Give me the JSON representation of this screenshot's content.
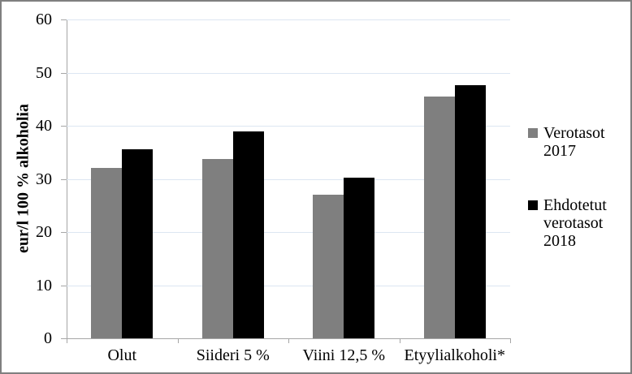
{
  "chart_data": {
    "type": "bar",
    "title": "",
    "xlabel": "",
    "ylabel": "eur/l 100 % alkoholia",
    "ylim": [
      0,
      60
    ],
    "ytick_step": 10,
    "grid": true,
    "legend_position": "right",
    "categories": [
      "Olut",
      "Siideri 5 %",
      "Viini 12,5 %",
      "Etyylialkoholi*"
    ],
    "series": [
      {
        "name": "Verotasot 2017",
        "color": "#7f7f7f",
        "values": [
          32.05,
          33.8,
          27.1,
          45.55
        ]
      },
      {
        "name": "Ehdotetut verotasot 2018",
        "color": "#000000",
        "values": [
          35.55,
          39.0,
          30.3,
          47.7
        ]
      }
    ]
  },
  "colors": {
    "background": "#ffffff",
    "frame_border": "#7f7f7f",
    "gridline": "#dce6f2",
    "axis": "#a6a6a6",
    "text": "#000000",
    "series_2017": "#7f7f7f",
    "series_2018": "#000000"
  }
}
